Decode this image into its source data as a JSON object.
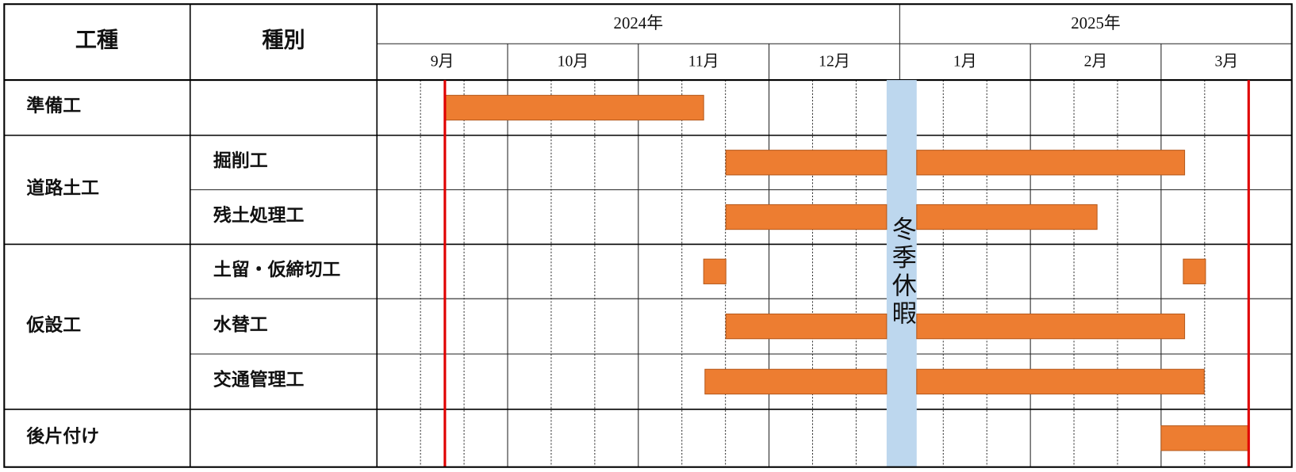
{
  "header": {
    "type_label": "工種",
    "kind_label": "種別",
    "years": [
      "2024年",
      "2025年"
    ],
    "months": [
      "9月",
      "10月",
      "11月",
      "12月",
      "1月",
      "2月",
      "3月"
    ]
  },
  "sections": [
    {
      "name": "準備工",
      "items": [
        {
          "bars": [
            {
              "start": 0.52,
              "end": 2.5
            }
          ]
        }
      ]
    },
    {
      "name": "道路土工",
      "items": [
        {
          "name": "掘削工",
          "bars": [
            {
              "start": 2.67,
              "end": 3.9
            },
            {
              "start": 4.13,
              "end": 6.18
            }
          ]
        },
        {
          "name": "残土処理工",
          "bars": [
            {
              "start": 2.67,
              "end": 3.9
            },
            {
              "start": 4.13,
              "end": 5.51
            }
          ]
        }
      ]
    },
    {
      "name": "仮設工",
      "items": [
        {
          "name": "土留・仮締切工",
          "bars": [
            {
              "start": 2.5,
              "end": 2.67
            },
            {
              "start": 6.17,
              "end": 6.34
            }
          ]
        },
        {
          "name": "水替工",
          "bars": [
            {
              "start": 2.67,
              "end": 3.9
            },
            {
              "start": 4.13,
              "end": 6.18
            }
          ]
        },
        {
          "name": "交通管理工",
          "bars": [
            {
              "start": 2.51,
              "end": 3.9
            },
            {
              "start": 4.13,
              "end": 6.33
            }
          ]
        }
      ]
    },
    {
      "name": "後片付け",
      "items": [
        {
          "bars": [
            {
              "start": 6.0,
              "end": 6.67
            }
          ]
        }
      ]
    }
  ],
  "winter_break": {
    "label": "冬季休暇",
    "start": 3.9,
    "end": 4.13
  },
  "milestones": [
    0.52,
    6.67
  ]
}
